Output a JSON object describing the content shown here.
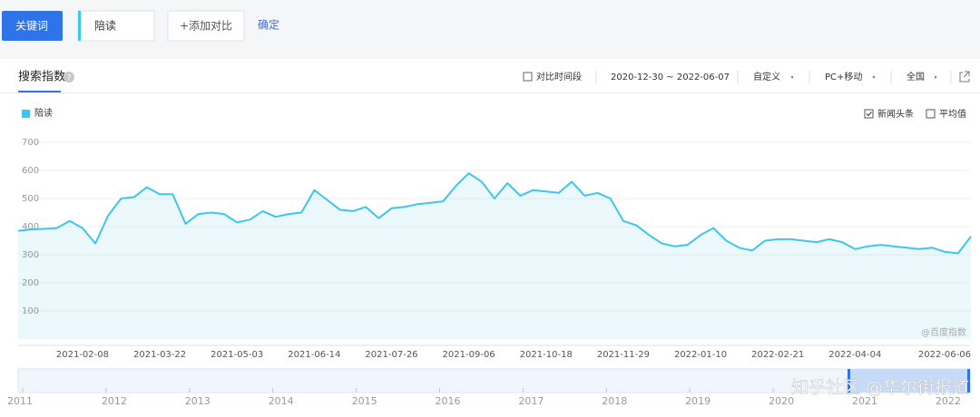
{
  "toolbar": {
    "keyword_button": "关键词",
    "keyword": "陪读",
    "add_compare": "+添加对比",
    "confirm": "确定"
  },
  "panel": {
    "tab": "搜索指数",
    "compare_period": "对比时间段",
    "date_range": "2020-12-30 ~ 2022-06-07",
    "custom": "自定义",
    "device": "PC+移动",
    "region": "全国",
    "news_headline": "新闻头条",
    "average": "平均值",
    "source_mark": "@百度指数"
  },
  "chart_data": {
    "type": "area",
    "categories": [
      null,
      null,
      null,
      null,
      null,
      "2021-02-08",
      null,
      null,
      null,
      null,
      null,
      "2021-03-22",
      null,
      null,
      null,
      null,
      null,
      "2021-05-03",
      null,
      null,
      null,
      null,
      null,
      "2021-06-14",
      null,
      null,
      null,
      null,
      null,
      "2021-07-26",
      null,
      null,
      null,
      null,
      null,
      "2021-09-06",
      null,
      null,
      null,
      null,
      null,
      "2021-10-18",
      null,
      null,
      null,
      null,
      null,
      "2021-11-29",
      null,
      null,
      null,
      null,
      null,
      "2022-01-10",
      null,
      null,
      null,
      null,
      null,
      "2022-02-21",
      null,
      null,
      null,
      null,
      null,
      "2022-04-04",
      null,
      null,
      null,
      null,
      null,
      null,
      null,
      null,
      "2022-06-06"
    ],
    "series": [
      {
        "name": "陪读",
        "color": "#3ec5ee",
        "values": [
          385,
          390,
          392,
          395,
          420,
          395,
          340,
          440,
          500,
          505,
          540,
          515,
          515,
          410,
          445,
          450,
          445,
          415,
          425,
          455,
          435,
          445,
          450,
          530,
          495,
          460,
          455,
          470,
          430,
          465,
          470,
          480,
          485,
          490,
          545,
          590,
          560,
          500,
          555,
          510,
          530,
          525,
          520,
          560,
          510,
          520,
          500,
          420,
          405,
          370,
          340,
          330,
          335,
          370,
          395,
          350,
          325,
          315,
          350,
          355,
          355,
          350,
          345,
          355,
          345,
          320,
          330,
          335,
          330,
          325,
          320,
          325,
          310,
          305,
          365
        ]
      }
    ],
    "ylim": [
      0,
      700
    ],
    "yticks": [
      100,
      200,
      300,
      400,
      500,
      600,
      700
    ],
    "grid": true
  },
  "navigator": {
    "years": [
      "2011",
      "2012",
      "2013",
      "2014",
      "2015",
      "2016",
      "2017",
      "2018",
      "2019",
      "2020",
      "2021",
      "2022"
    ]
  },
  "overlay_watermark": "知乎社区 @华尔街报道"
}
